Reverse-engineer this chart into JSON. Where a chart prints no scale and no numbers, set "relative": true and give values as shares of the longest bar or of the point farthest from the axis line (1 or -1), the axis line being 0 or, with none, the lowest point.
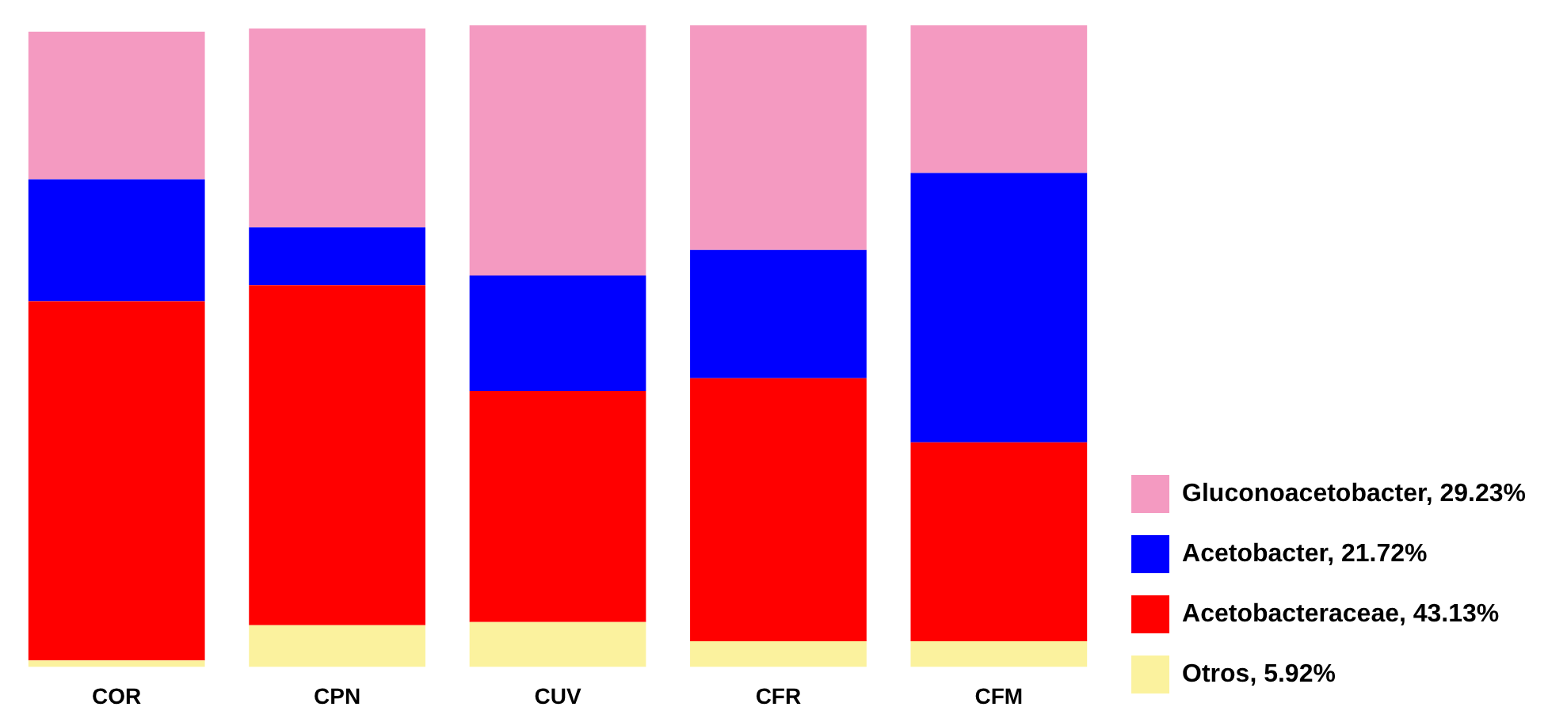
{
  "chart_data": {
    "type": "bar",
    "stacked": true,
    "relative": true,
    "legend": "right",
    "categories": [
      "COR",
      "CPN",
      "CUV",
      "CFR",
      "CFM"
    ],
    "series": [
      {
        "name": "Otros, 5.92%",
        "color": "#fbf29e",
        "values": [
          0.01,
          0.065,
          0.07,
          0.04,
          0.04
        ]
      },
      {
        "name": "Acetobacteraceae, 43.13%",
        "color": "#ff0000",
        "values": [
          0.56,
          0.53,
          0.36,
          0.41,
          0.31
        ]
      },
      {
        "name": "Acetobacter, 21.72%",
        "color": "#0000ff",
        "values": [
          0.19,
          0.09,
          0.18,
          0.2,
          0.42
        ]
      },
      {
        "name": "Gluconoacetobacter, 29.23%",
        "color": "#f49ac1",
        "values": [
          0.23,
          0.31,
          0.39,
          0.35,
          0.23
        ]
      }
    ]
  }
}
